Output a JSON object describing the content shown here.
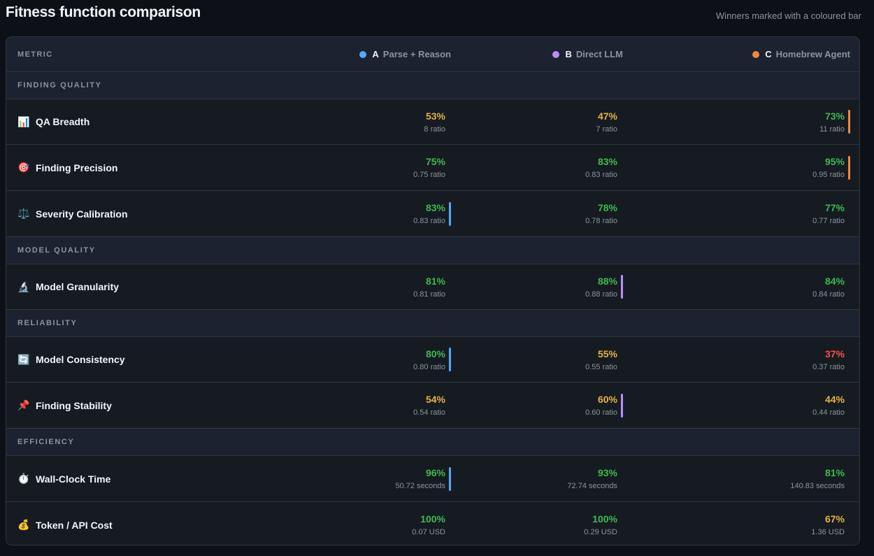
{
  "title": "Fitness function comparison",
  "subtitle": "Winners marked with a coloured bar",
  "header": {
    "metric_label": "METRIC",
    "columns": [
      {
        "letter": "A",
        "name": "Parse + Reason",
        "color": "#58a6ff"
      },
      {
        "letter": "B",
        "name": "Direct LLM",
        "color": "#bc8cff"
      },
      {
        "letter": "C",
        "name": "Homebrew Agent",
        "color": "#f0883e"
      }
    ]
  },
  "colors": {
    "green": "#3fb950",
    "amber": "#e3b341",
    "red": "#f85149"
  },
  "sections": [
    {
      "label": "FINDING QUALITY",
      "rows": [
        {
          "icon": "📊",
          "icon_name": "bar-chart-icon",
          "name": "QA Breadth",
          "cells": [
            {
              "pct": "53%",
              "sub": "8 ratio",
              "tone": "amber",
              "winner": false
            },
            {
              "pct": "47%",
              "sub": "7 ratio",
              "tone": "amber",
              "winner": false
            },
            {
              "pct": "73%",
              "sub": "11 ratio",
              "tone": "green",
              "winner": true
            }
          ]
        },
        {
          "icon": "🎯",
          "icon_name": "target-icon",
          "name": "Finding Precision",
          "cells": [
            {
              "pct": "75%",
              "sub": "0.75 ratio",
              "tone": "green",
              "winner": false
            },
            {
              "pct": "83%",
              "sub": "0.83 ratio",
              "tone": "green",
              "winner": false
            },
            {
              "pct": "95%",
              "sub": "0.95 ratio",
              "tone": "green",
              "winner": true
            }
          ]
        },
        {
          "icon": "⚖️",
          "icon_name": "balance-scale-icon",
          "name": "Severity Calibration",
          "cells": [
            {
              "pct": "83%",
              "sub": "0.83 ratio",
              "tone": "green",
              "winner": true
            },
            {
              "pct": "78%",
              "sub": "0.78 ratio",
              "tone": "green",
              "winner": false
            },
            {
              "pct": "77%",
              "sub": "0.77 ratio",
              "tone": "green",
              "winner": false
            }
          ]
        }
      ]
    },
    {
      "label": "MODEL QUALITY",
      "rows": [
        {
          "icon": "🔬",
          "icon_name": "microscope-icon",
          "name": "Model Granularity",
          "cells": [
            {
              "pct": "81%",
              "sub": "0.81 ratio",
              "tone": "green",
              "winner": false
            },
            {
              "pct": "88%",
              "sub": "0.88 ratio",
              "tone": "green",
              "winner": true
            },
            {
              "pct": "84%",
              "sub": "0.84 ratio",
              "tone": "green",
              "winner": false
            }
          ]
        }
      ]
    },
    {
      "label": "RELIABILITY",
      "rows": [
        {
          "icon": "🔄",
          "icon_name": "refresh-icon",
          "name": "Model Consistency",
          "cells": [
            {
              "pct": "80%",
              "sub": "0.80 ratio",
              "tone": "green",
              "winner": true
            },
            {
              "pct": "55%",
              "sub": "0.55 ratio",
              "tone": "amber",
              "winner": false
            },
            {
              "pct": "37%",
              "sub": "0.37 ratio",
              "tone": "red",
              "winner": false
            }
          ]
        },
        {
          "icon": "📌",
          "icon_name": "pushpin-icon",
          "name": "Finding Stability",
          "cells": [
            {
              "pct": "54%",
              "sub": "0.54 ratio",
              "tone": "amber",
              "winner": false
            },
            {
              "pct": "60%",
              "sub": "0.60 ratio",
              "tone": "amber",
              "winner": true
            },
            {
              "pct": "44%",
              "sub": "0.44 ratio",
              "tone": "amber",
              "winner": false
            }
          ]
        }
      ]
    },
    {
      "label": "EFFICIENCY",
      "rows": [
        {
          "icon": "⏱️",
          "icon_name": "stopwatch-icon",
          "name": "Wall-Clock Time",
          "cells": [
            {
              "pct": "96%",
              "sub": "50.72 seconds",
              "tone": "green",
              "winner": true
            },
            {
              "pct": "93%",
              "sub": "72.74 seconds",
              "tone": "green",
              "winner": false
            },
            {
              "pct": "81%",
              "sub": "140.83 seconds",
              "tone": "green",
              "winner": false
            }
          ]
        },
        {
          "icon": "💰",
          "icon_name": "money-bag-icon",
          "name": "Token / API Cost",
          "cells": [
            {
              "pct": "100%",
              "sub": "0.07 USD",
              "tone": "green",
              "winner": false
            },
            {
              "pct": "100%",
              "sub": "0.29 USD",
              "tone": "green",
              "winner": false
            },
            {
              "pct": "67%",
              "sub": "1.36 USD",
              "tone": "amber",
              "winner": false
            }
          ]
        }
      ]
    }
  ]
}
